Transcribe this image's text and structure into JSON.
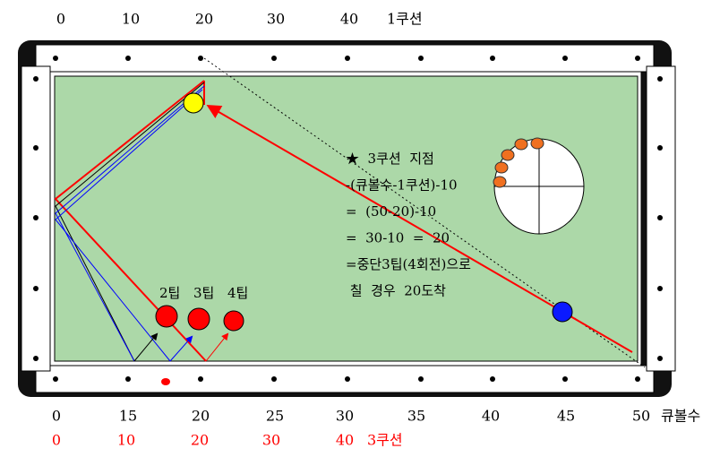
{
  "top_scale": {
    "labels": [
      0,
      10,
      20,
      30,
      40
    ],
    "title": "1쿠션"
  },
  "bottom_scale": {
    "labels": [
      0,
      15,
      20,
      25,
      30,
      35,
      40,
      45,
      50
    ],
    "title": "큐볼수"
  },
  "red_scale": {
    "labels": [
      0,
      10,
      20,
      30,
      40
    ],
    "title": "3쿠션"
  },
  "tip_labels": [
    "2팁",
    "3팁",
    "4팁"
  ],
  "note": {
    "lines": [
      "★  3쿠션  지점",
      "-(큐볼수-1쿠션)-10",
      "=  (50-20)-10",
      "=  30-10  =  20",
      "=중단3팁(4회전)으로",
      " 칠  경우  20도착"
    ]
  }
}
